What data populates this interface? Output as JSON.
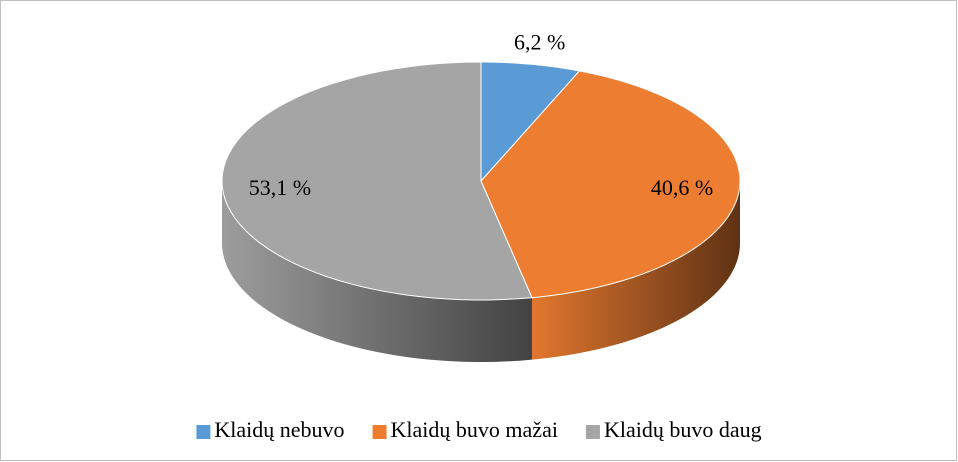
{
  "chart_data": {
    "type": "pie",
    "categories": [
      "Klaidų nebuvo",
      "Klaidų buvo mažai",
      "Klaidų buvo daug"
    ],
    "values": [
      6.2,
      40.6,
      53.1
    ],
    "value_labels": [
      "6,2 %",
      "40,6 %",
      "53,1 %"
    ],
    "colors": [
      "#5b9bd5",
      "#ed7d31",
      "#a5a5a5"
    ],
    "legend": "bottom"
  }
}
